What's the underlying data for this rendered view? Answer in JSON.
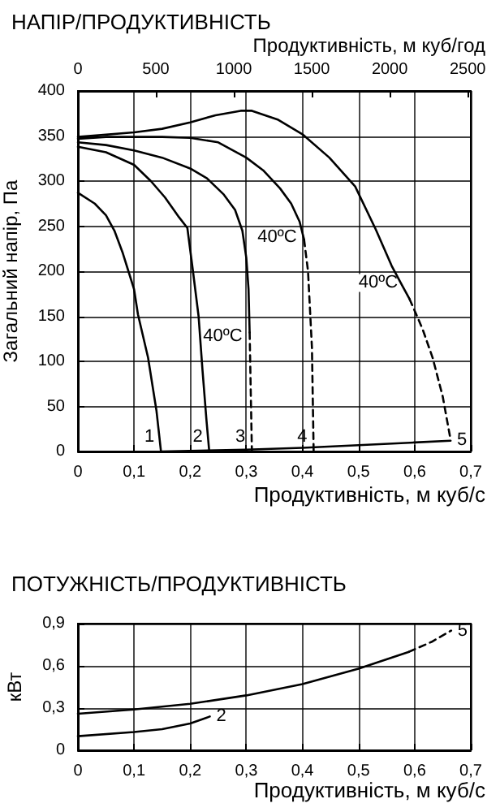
{
  "chart_data": [
    {
      "type": "line",
      "title": "НАПІР/ПРОДУКТИВНІСТЬ",
      "x2label": "Продуктивність, м куб/год",
      "xlabel": "Продуктивність, м куб/с",
      "ylabel": "Загальний напір, Па",
      "xlim": [
        0,
        0.7
      ],
      "xticks": [
        0,
        {
          "value": 0.1,
          "label": "0,1"
        },
        {
          "value": 0.2,
          "label": "0,2"
        },
        {
          "value": 0.3,
          "label": "0,3"
        },
        {
          "value": 0.4,
          "label": "0,4"
        },
        {
          "value": 0.5,
          "label": "0,5"
        },
        {
          "value": 0.6,
          "label": "0,6"
        },
        {
          "value": 0.7,
          "label": "0,7"
        }
      ],
      "x2lim": [
        0,
        2520
      ],
      "x2ticks": [
        0,
        500,
        1000,
        1500,
        2000,
        2500
      ],
      "ylim": [
        0,
        400
      ],
      "yticks": [
        0,
        50,
        100,
        150,
        200,
        250,
        300,
        350,
        400
      ],
      "grid": true,
      "legend": false,
      "marker": "none",
      "line_style": "solid",
      "annotations": [
        {
          "text": "40ºC",
          "x": 0.258,
          "y": 128
        },
        {
          "text": "40ºC",
          "x": 0.355,
          "y": 238
        },
        {
          "text": "40ºC",
          "x": 0.535,
          "y": 187
        }
      ],
      "series": [
        {
          "name": "1",
          "color": "#000000",
          "x": [
            0,
            0.03,
            0.05,
            0.065,
            0.08,
            0.09,
            0.1,
            0.107,
            0.125,
            0.14,
            0.148
          ],
          "values": [
            287,
            275,
            262,
            245,
            220,
            200,
            180,
            152,
            104,
            45,
            0
          ]
        },
        {
          "name": "2",
          "color": "#000000",
          "x": [
            0,
            0.05,
            0.1,
            0.13,
            0.155,
            0.18,
            0.195,
            0.205,
            0.215,
            0.222,
            0.229,
            0.234
          ],
          "values": [
            338,
            332,
            318,
            300,
            282,
            260,
            248,
            200,
            150,
            90,
            35,
            0
          ]
        },
        {
          "color": "#000000",
          "x": [
            0,
            0.05,
            0.1,
            0.15,
            0.2,
            0.23,
            0.26,
            0.28,
            0.293,
            0.3,
            0.304,
            0.306
          ],
          "values": [
            343,
            340,
            334,
            326,
            314,
            303,
            285,
            268,
            245,
            215,
            180,
            132
          ]
        },
        {
          "name": "3",
          "color": "#000000",
          "line_style": "dashed",
          "x": [
            0.306,
            0.308,
            0.31
          ],
          "values": [
            132,
            65,
            0
          ]
        },
        {
          "color": "#000000",
          "x": [
            0,
            0.05,
            0.1,
            0.15,
            0.2,
            0.25,
            0.3,
            0.33,
            0.36,
            0.38,
            0.395,
            0.403
          ],
          "values": [
            347,
            349,
            349,
            349,
            348,
            343,
            326,
            312,
            292,
            275,
            255,
            235
          ]
        },
        {
          "name": "4",
          "color": "#000000",
          "line_style": "dashed",
          "x": [
            0.403,
            0.41,
            0.417,
            0.42
          ],
          "values": [
            235,
            200,
            115,
            0
          ]
        },
        {
          "color": "#000000",
          "x": [
            0,
            0.1,
            0.15,
            0.2,
            0.245,
            0.29,
            0.31,
            0.357,
            0.4,
            0.448,
            0.494,
            0.531,
            0.559,
            0.577,
            0.591
          ],
          "values": [
            349,
            354,
            358,
            365,
            373,
            378,
            378,
            368,
            352,
            326,
            294,
            246,
            206,
            185,
            169
          ]
        },
        {
          "name": "5",
          "color": "#000000",
          "line_style": "dashed",
          "x": [
            0.591,
            0.614,
            0.632,
            0.65,
            0.664
          ],
          "values": [
            169,
            136,
            104,
            61,
            13
          ]
        },
        {
          "color": "#000000",
          "x": [
            0.148,
            0.3,
            0.4,
            0.5,
            0.6,
            0.664
          ],
          "values": [
            0,
            2,
            4,
            7,
            10,
            12
          ]
        }
      ]
    },
    {
      "type": "line",
      "title": "ПОТУЖНІСТЬ/ПРОДУКТИВНІСТЬ",
      "xlabel": "Продуктивність, м куб/с",
      "ylabel": "кВт",
      "xlim": [
        0,
        0.7
      ],
      "xticks": [
        0,
        {
          "value": 0.1,
          "label": "0,1"
        },
        {
          "value": 0.2,
          "label": "0,2"
        },
        {
          "value": 0.3,
          "label": "0,3"
        },
        {
          "value": 0.4,
          "label": "0,4"
        },
        {
          "value": 0.5,
          "label": "0,5"
        },
        {
          "value": 0.6,
          "label": "0,6"
        },
        {
          "value": 0.7,
          "label": "0,7"
        }
      ],
      "ylim": [
        0,
        0.9
      ],
      "yticks": [
        0,
        {
          "value": 0.3,
          "label": "0,3"
        },
        {
          "value": 0.6,
          "label": "0,6"
        },
        {
          "value": 0.9,
          "label": "0,9"
        }
      ],
      "grid": true,
      "legend": false,
      "marker": "none",
      "line_style": "solid",
      "series": [
        {
          "color": "#000000",
          "x": [
            0,
            0.1,
            0.2,
            0.3,
            0.4,
            0.5,
            0.59
          ],
          "values": [
            0.26,
            0.29,
            0.33,
            0.39,
            0.47,
            0.58,
            0.7
          ]
        },
        {
          "name": "5",
          "color": "#000000",
          "line_style": "dashed",
          "x": [
            0.59,
            0.63,
            0.665
          ],
          "values": [
            0.7,
            0.77,
            0.85
          ]
        },
        {
          "name": "2",
          "color": "#000000",
          "x": [
            0,
            0.1,
            0.15,
            0.2,
            0.235
          ],
          "values": [
            0.1,
            0.13,
            0.15,
            0.19,
            0.24
          ]
        }
      ]
    }
  ]
}
